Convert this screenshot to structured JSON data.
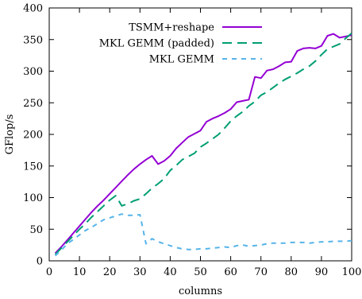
{
  "chart_data": {
    "type": "line",
    "xlabel": "columns",
    "ylabel": "GFlop/s",
    "xlim": [
      0,
      100
    ],
    "ylim": [
      0,
      400
    ],
    "xticks": [
      0,
      10,
      20,
      30,
      40,
      50,
      60,
      70,
      80,
      90,
      100
    ],
    "yticks": [
      0,
      50,
      100,
      150,
      200,
      250,
      300,
      350,
      400
    ],
    "grid": false,
    "legend_position": "top-right",
    "series": [
      {
        "name": "TSMM+reshape",
        "color": "#9400d3",
        "dash": "solid",
        "x": [
          2,
          4,
          6,
          8,
          10,
          12,
          14,
          16,
          18,
          20,
          22,
          24,
          26,
          28,
          30,
          32,
          34,
          36,
          38,
          40,
          42,
          44,
          46,
          48,
          50,
          52,
          54,
          56,
          58,
          60,
          62,
          64,
          66,
          68,
          70,
          72,
          74,
          76,
          78,
          80,
          82,
          84,
          86,
          88,
          90,
          92,
          94,
          96,
          98,
          100
        ],
        "values": [
          12,
          22,
          33,
          44,
          55,
          66,
          77,
          87,
          96,
          106,
          116,
          126,
          136,
          145,
          153,
          160,
          166,
          153,
          158,
          166,
          178,
          187,
          196,
          201,
          206,
          220,
          225,
          229,
          234,
          240,
          251,
          253,
          255,
          291,
          289,
          301,
          303,
          308,
          314,
          315,
          332,
          336,
          337,
          336,
          340,
          356,
          359,
          353,
          355,
          357
        ]
      },
      {
        "name": "MKL GEMM (padded)",
        "color": "#009e73",
        "dash": "long-dash",
        "x": [
          2,
          4,
          6,
          8,
          10,
          12,
          14,
          16,
          18,
          20,
          22,
          24,
          26,
          28,
          30,
          32,
          34,
          36,
          38,
          40,
          42,
          44,
          46,
          48,
          50,
          52,
          54,
          56,
          58,
          60,
          62,
          64,
          66,
          68,
          70,
          72,
          74,
          76,
          78,
          80,
          82,
          84,
          86,
          88,
          90,
          92,
          94,
          96,
          98,
          100
        ],
        "values": [
          10,
          20,
          30,
          40,
          50,
          59,
          69,
          78,
          87,
          96,
          103,
          87,
          90,
          95,
          98,
          106,
          115,
          122,
          130,
          143,
          151,
          160,
          165,
          170,
          180,
          186,
          193,
          200,
          210,
          221,
          229,
          236,
          245,
          252,
          262,
          267,
          274,
          281,
          287,
          292,
          297,
          303,
          308,
          316,
          326,
          335,
          339,
          343,
          352,
          360
        ]
      },
      {
        "name": "MKL GEMM",
        "color": "#56b4e9",
        "dash": "short-dash",
        "x": [
          2,
          4,
          6,
          8,
          10,
          12,
          14,
          16,
          18,
          20,
          22,
          24,
          26,
          28,
          30,
          32,
          34,
          36,
          38,
          40,
          42,
          44,
          46,
          48,
          50,
          52,
          54,
          56,
          58,
          60,
          62,
          64,
          66,
          68,
          70,
          72,
          74,
          76,
          78,
          80,
          82,
          84,
          86,
          88,
          90,
          92,
          94,
          96,
          98,
          100
        ],
        "values": [
          8,
          17,
          27,
          34,
          41,
          48,
          53,
          59,
          65,
          68,
          71,
          74,
          72,
          72,
          73,
          27,
          35,
          30,
          27,
          24,
          21,
          19,
          18,
          18,
          19,
          19,
          20,
          21,
          22,
          21,
          24,
          25,
          23,
          24,
          25,
          27,
          28,
          28,
          28,
          29,
          29,
          29,
          28,
          29,
          30,
          30,
          31,
          31,
          31,
          32
        ]
      }
    ]
  }
}
